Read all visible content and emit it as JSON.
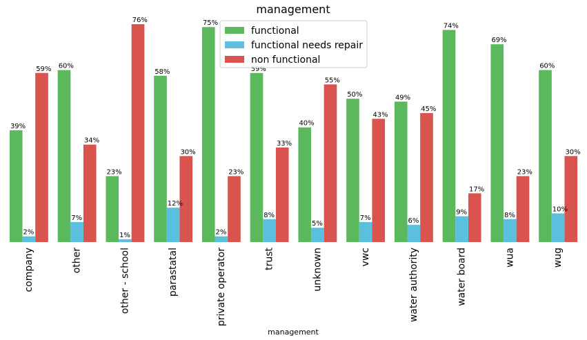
{
  "chart_data": {
    "type": "bar",
    "title": "management",
    "xlabel": "management",
    "ylabel": "",
    "ylim": [
      0,
      77
    ],
    "legend_position": "top-center",
    "categories": [
      "company",
      "other",
      "other - school",
      "parastatal",
      "private operator",
      "trust",
      "unknown",
      "vwc",
      "water authority",
      "water board",
      "wua",
      "wug"
    ],
    "series": [
      {
        "name": "functional",
        "color": "#5cb85c",
        "values": [
          39,
          60,
          23,
          58,
          75,
          59,
          40,
          50,
          49,
          74,
          69,
          60
        ],
        "labels": [
          "39%",
          "60%",
          "23%",
          "58%",
          "75%",
          "59%",
          "40%",
          "50%",
          "49%",
          "74%",
          "69%",
          "60%"
        ]
      },
      {
        "name": "functional needs repair",
        "color": "#5bc0de",
        "values": [
          2,
          7,
          1,
          12,
          2,
          8,
          5,
          7,
          6,
          9,
          8,
          10
        ],
        "labels": [
          "2%",
          "7%",
          "1%",
          "12%",
          "2%",
          "8%",
          "5%",
          "7%",
          "6%",
          "9%",
          "8%",
          "10%"
        ]
      },
      {
        "name": "non functional",
        "color": "#d9534f",
        "values": [
          59,
          34,
          76,
          30,
          23,
          33,
          55,
          43,
          45,
          17,
          23,
          30
        ],
        "labels": [
          "59%",
          "34%",
          "76%",
          "30%",
          "23%",
          "33%",
          "55%",
          "43%",
          "45%",
          "17%",
          "23%",
          "30%"
        ]
      }
    ]
  }
}
